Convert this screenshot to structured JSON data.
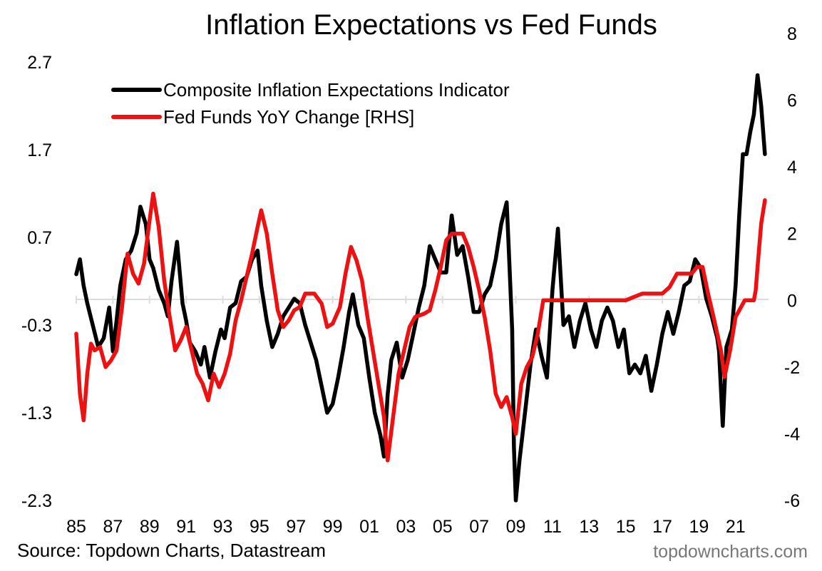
{
  "source": "Source: Topdown Charts, Datastream",
  "watermark": "topdowncharts.com",
  "chart_data": {
    "type": "line",
    "title": "Inflation Expectations vs Fed Funds",
    "xlabel": "",
    "ylabel": "",
    "x_tick_labels": [
      "85",
      "87",
      "89",
      "91",
      "93",
      "95",
      "97",
      "99",
      "01",
      "03",
      "05",
      "07",
      "09",
      "11",
      "13",
      "15",
      "17",
      "19",
      "21"
    ],
    "x_range": [
      1985,
      2022.8
    ],
    "y_left": {
      "ticks": [
        "2.7",
        "1.7",
        "0.7",
        "-0.3",
        "-1.3",
        "-2.3"
      ],
      "range": [
        -2.3,
        2.7
      ]
    },
    "y_right": {
      "ticks": [
        "8",
        "6",
        "4",
        "2",
        "0",
        "-2",
        "-4",
        "-6"
      ],
      "range": [
        -6,
        8
      ]
    },
    "legend_position": "top-left",
    "series": [
      {
        "name": "Composite Inflation Expectations Indicator",
        "axis": "left",
        "color": "#000000",
        "x": [
          1985.0,
          1985.2,
          1985.4,
          1985.6,
          1985.9,
          1986.2,
          1986.5,
          1986.8,
          1987.0,
          1987.2,
          1987.4,
          1987.7,
          1988.0,
          1988.3,
          1988.5,
          1988.8,
          1989.0,
          1989.2,
          1989.5,
          1989.8,
          1990.0,
          1990.2,
          1990.5,
          1990.8,
          1991.0,
          1991.2,
          1991.5,
          1991.8,
          1992.0,
          1992.3,
          1992.6,
          1992.9,
          1993.1,
          1993.4,
          1993.7,
          1994.0,
          1994.3,
          1994.6,
          1994.9,
          1995.1,
          1995.4,
          1995.7,
          1996.0,
          1996.3,
          1996.6,
          1996.9,
          1997.2,
          1997.5,
          1997.8,
          1998.1,
          1998.4,
          1998.7,
          1999.0,
          1999.3,
          1999.6,
          1999.9,
          2000.1,
          2000.4,
          2000.7,
          2001.0,
          2001.3,
          2001.6,
          2001.8,
          2002.0,
          2002.2,
          2002.5,
          2002.8,
          2003.1,
          2003.4,
          2003.7,
          2004.0,
          2004.3,
          2004.6,
          2004.9,
          2005.2,
          2005.5,
          2005.8,
          2006.1,
          2006.4,
          2006.7,
          2007.0,
          2007.3,
          2007.6,
          2007.9,
          2008.2,
          2008.5,
          2008.6,
          2008.8,
          2008.9,
          2009.0,
          2009.2,
          2009.5,
          2009.8,
          2010.1,
          2010.4,
          2010.7,
          2011.0,
          2011.3,
          2011.6,
          2011.9,
          2012.2,
          2012.5,
          2012.8,
          2013.1,
          2013.4,
          2013.7,
          2014.0,
          2014.3,
          2014.6,
          2014.9,
          2015.2,
          2015.5,
          2015.8,
          2016.1,
          2016.4,
          2016.7,
          2017.0,
          2017.3,
          2017.6,
          2017.9,
          2018.2,
          2018.5,
          2018.8,
          2019.1,
          2019.4,
          2019.7,
          2020.0,
          2020.1,
          2020.3,
          2020.5,
          2020.8,
          2021.0,
          2021.2,
          2021.4,
          2021.6,
          2021.8,
          2022.0,
          2022.2,
          2022.4,
          2022.6
        ],
        "values": [
          0.28,
          0.45,
          0.15,
          -0.05,
          -0.3,
          -0.55,
          -0.45,
          -0.1,
          -0.6,
          -0.25,
          0.15,
          0.45,
          0.55,
          0.75,
          1.05,
          0.85,
          0.45,
          0.35,
          0.1,
          -0.05,
          -0.2,
          0.2,
          0.65,
          -0.05,
          -0.25,
          -0.5,
          -0.6,
          -0.75,
          -0.55,
          -0.9,
          -0.6,
          -0.35,
          -0.45,
          -0.1,
          -0.05,
          0.2,
          0.25,
          0.45,
          0.55,
          0.15,
          -0.25,
          -0.55,
          -0.4,
          -0.2,
          -0.1,
          0.0,
          -0.05,
          -0.3,
          -0.5,
          -0.7,
          -1.0,
          -1.3,
          -1.2,
          -0.9,
          -0.55,
          -0.15,
          0.05,
          -0.3,
          -0.45,
          -0.9,
          -1.3,
          -1.55,
          -1.8,
          -1.1,
          -0.7,
          -0.5,
          -0.9,
          -0.7,
          -0.4,
          -0.1,
          0.15,
          0.6,
          0.45,
          0.3,
          0.3,
          0.95,
          0.5,
          0.6,
          0.25,
          -0.15,
          -0.15,
          0.05,
          0.15,
          0.45,
          0.85,
          1.1,
          0.65,
          -0.35,
          -1.7,
          -2.3,
          -1.85,
          -1.3,
          -0.75,
          -0.35,
          -0.65,
          -0.9,
          0.1,
          0.8,
          -0.3,
          -0.2,
          -0.55,
          -0.25,
          -0.05,
          -0.35,
          -0.55,
          -0.25,
          -0.1,
          -0.25,
          -0.55,
          -0.35,
          -0.85,
          -0.75,
          -0.85,
          -0.65,
          -1.05,
          -0.75,
          -0.4,
          -0.15,
          -0.4,
          -0.15,
          0.15,
          0.2,
          0.45,
          0.35,
          0.0,
          -0.2,
          -0.45,
          -0.6,
          -1.45,
          -0.55,
          -0.35,
          0.15,
          0.95,
          1.65,
          1.65,
          1.9,
          2.1,
          2.55,
          2.2,
          1.65
        ]
      },
      {
        "name": "Fed Funds YoY Change [RHS]",
        "axis": "right",
        "color": "#ee1111",
        "x": [
          1985.0,
          1985.2,
          1985.4,
          1985.6,
          1985.8,
          1986.0,
          1986.3,
          1986.6,
          1986.9,
          1987.2,
          1987.5,
          1987.8,
          1988.1,
          1988.4,
          1988.7,
          1989.0,
          1989.2,
          1989.5,
          1989.8,
          1990.1,
          1990.4,
          1990.7,
          1991.0,
          1991.3,
          1991.6,
          1991.9,
          1992.2,
          1992.5,
          1992.8,
          1993.1,
          1993.4,
          1993.7,
          1994.0,
          1994.3,
          1994.6,
          1994.9,
          1995.1,
          1995.4,
          1995.7,
          1996.0,
          1996.3,
          1996.6,
          1996.9,
          1997.2,
          1997.5,
          1998.0,
          1998.4,
          1998.7,
          1999.0,
          1999.4,
          1999.7,
          2000.0,
          2000.3,
          2000.6,
          2000.9,
          2001.2,
          2001.5,
          2001.8,
          2002.0,
          2002.3,
          2002.6,
          2002.9,
          2003.2,
          2003.5,
          2004.0,
          2004.3,
          2004.6,
          2004.9,
          2005.2,
          2005.5,
          2005.8,
          2006.1,
          2006.4,
          2006.7,
          2007.0,
          2007.3,
          2007.6,
          2007.9,
          2008.2,
          2008.5,
          2008.8,
          2009.0,
          2009.3,
          2009.6,
          2009.9,
          2010.2,
          2010.5,
          2011.0,
          2012.0,
          2013.0,
          2014.0,
          2015.0,
          2015.9,
          2016.5,
          2017.0,
          2017.4,
          2017.8,
          2018.2,
          2018.6,
          2018.9,
          2019.2,
          2019.5,
          2019.8,
          2020.0,
          2020.2,
          2020.4,
          2020.7,
          2021.0,
          2021.5,
          2022.0,
          2022.1,
          2022.2,
          2022.4,
          2022.6
        ],
        "values": [
          -1.0,
          -2.8,
          -3.6,
          -2.2,
          -1.3,
          -1.5,
          -1.4,
          -2.0,
          -1.8,
          -1.5,
          -0.2,
          1.4,
          0.8,
          0.5,
          1.1,
          2.4,
          3.2,
          2.2,
          0.6,
          -0.5,
          -1.5,
          -1.2,
          -0.8,
          -1.5,
          -2.2,
          -2.5,
          -3.0,
          -2.2,
          -2.6,
          -2.2,
          -1.6,
          -0.6,
          0.0,
          0.7,
          1.4,
          2.2,
          2.7,
          2.0,
          0.8,
          -0.3,
          -0.8,
          -0.6,
          -0.3,
          -0.2,
          0.2,
          0.2,
          -0.1,
          -0.8,
          -0.7,
          -0.2,
          0.8,
          1.6,
          1.2,
          0.6,
          -0.5,
          -1.5,
          -2.5,
          -3.5,
          -4.8,
          -3.5,
          -2.2,
          -1.5,
          -0.8,
          -0.5,
          -0.4,
          -0.3,
          0.3,
          1.0,
          1.8,
          2.0,
          2.0,
          2.0,
          1.6,
          1.0,
          0.3,
          -0.5,
          -1.5,
          -2.8,
          -3.2,
          -2.9,
          -3.5,
          -4.0,
          -2.5,
          -2.0,
          -1.7,
          -1.0,
          0.0,
          0.0,
          0.0,
          0.0,
          0.0,
          0.0,
          0.2,
          0.2,
          0.2,
          0.4,
          0.8,
          0.8,
          0.8,
          1.0,
          1.0,
          0.2,
          -0.5,
          -1.0,
          -1.5,
          -2.3,
          -1.5,
          -0.5,
          0.0,
          0.0,
          0.3,
          1.0,
          2.3,
          3.0
        ]
      }
    ]
  }
}
